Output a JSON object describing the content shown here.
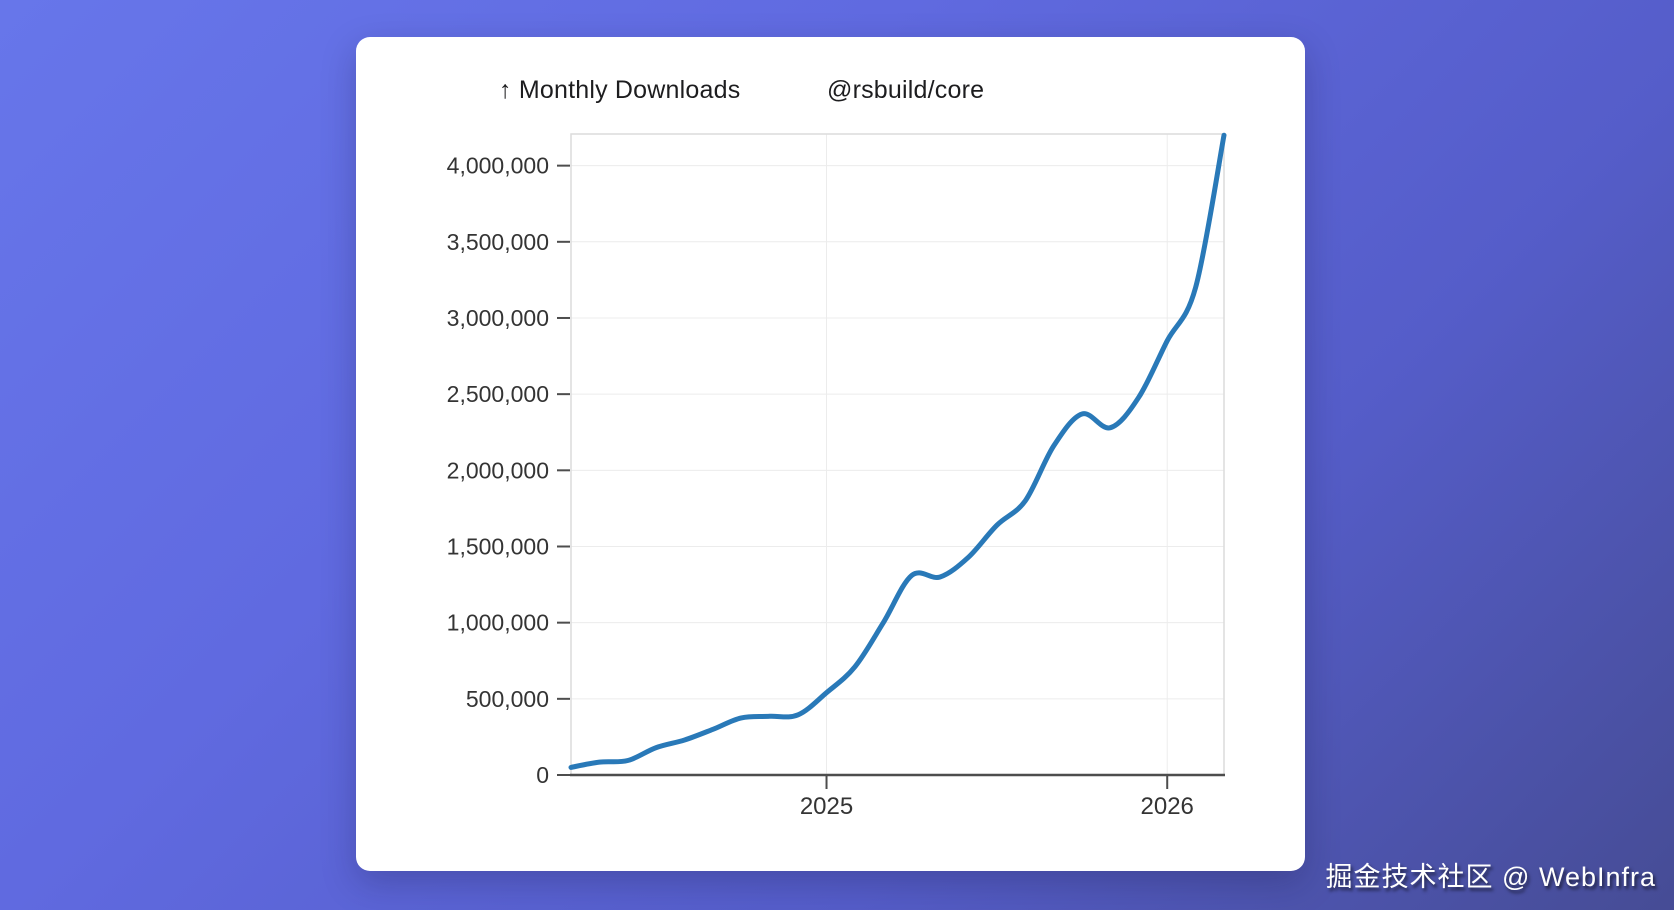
{
  "page": {
    "watermark": "掘金技术社区 @ WebInfra"
  },
  "card": {
    "title": "↑ Monthly Downloads",
    "package_name": "@rsbuild/core"
  },
  "colors": {
    "background_from": "#6776ea",
    "background_to": "#464c95",
    "card_background": "#ffffff",
    "line": "#2979b8",
    "grid": "#ececec",
    "frame": "#dcdcdc",
    "axis": "#4d4d4d",
    "tick_label": "#343434",
    "title_text": "#1d1d1f"
  },
  "chart_data": {
    "type": "line",
    "title": "Monthly Downloads",
    "series_name": "@rsbuild/core",
    "x": [
      "2024-04",
      "2024-05",
      "2024-06",
      "2024-07",
      "2024-08",
      "2024-09",
      "2024-10",
      "2024-11",
      "2024-12",
      "2025-01",
      "2025-02",
      "2025-03",
      "2025-04",
      "2025-05",
      "2025-06",
      "2025-07",
      "2025-08",
      "2025-09",
      "2025-10",
      "2025-11",
      "2025-12",
      "2026-01",
      "2026-02",
      "2026-03"
    ],
    "values": [
      50000,
      85000,
      95000,
      180000,
      230000,
      300000,
      375000,
      385000,
      395000,
      540000,
      710000,
      1000000,
      1310000,
      1300000,
      1430000,
      1640000,
      1800000,
      2160000,
      2370000,
      2280000,
      2480000,
      2850000,
      3200000,
      4200000
    ],
    "y_ticks": [
      {
        "value": 0,
        "label": "0"
      },
      {
        "value": 500000,
        "label": "500,000"
      },
      {
        "value": 1000000,
        "label": "1,000,000"
      },
      {
        "value": 1500000,
        "label": "1,500,000"
      },
      {
        "value": 2000000,
        "label": "2,000,000"
      },
      {
        "value": 2500000,
        "label": "2,500,000"
      },
      {
        "value": 3000000,
        "label": "3,000,000"
      },
      {
        "value": 3500000,
        "label": "3,500,000"
      },
      {
        "value": 4000000,
        "label": "4,000,000"
      }
    ],
    "x_ticks": [
      {
        "label": "2025",
        "month_index": 9
      },
      {
        "label": "2026",
        "month_index": 21
      }
    ],
    "ylim": [
      0,
      4210000
    ],
    "grid": true,
    "legend": "none",
    "line_color": "#2979b8",
    "smooth": true
  }
}
